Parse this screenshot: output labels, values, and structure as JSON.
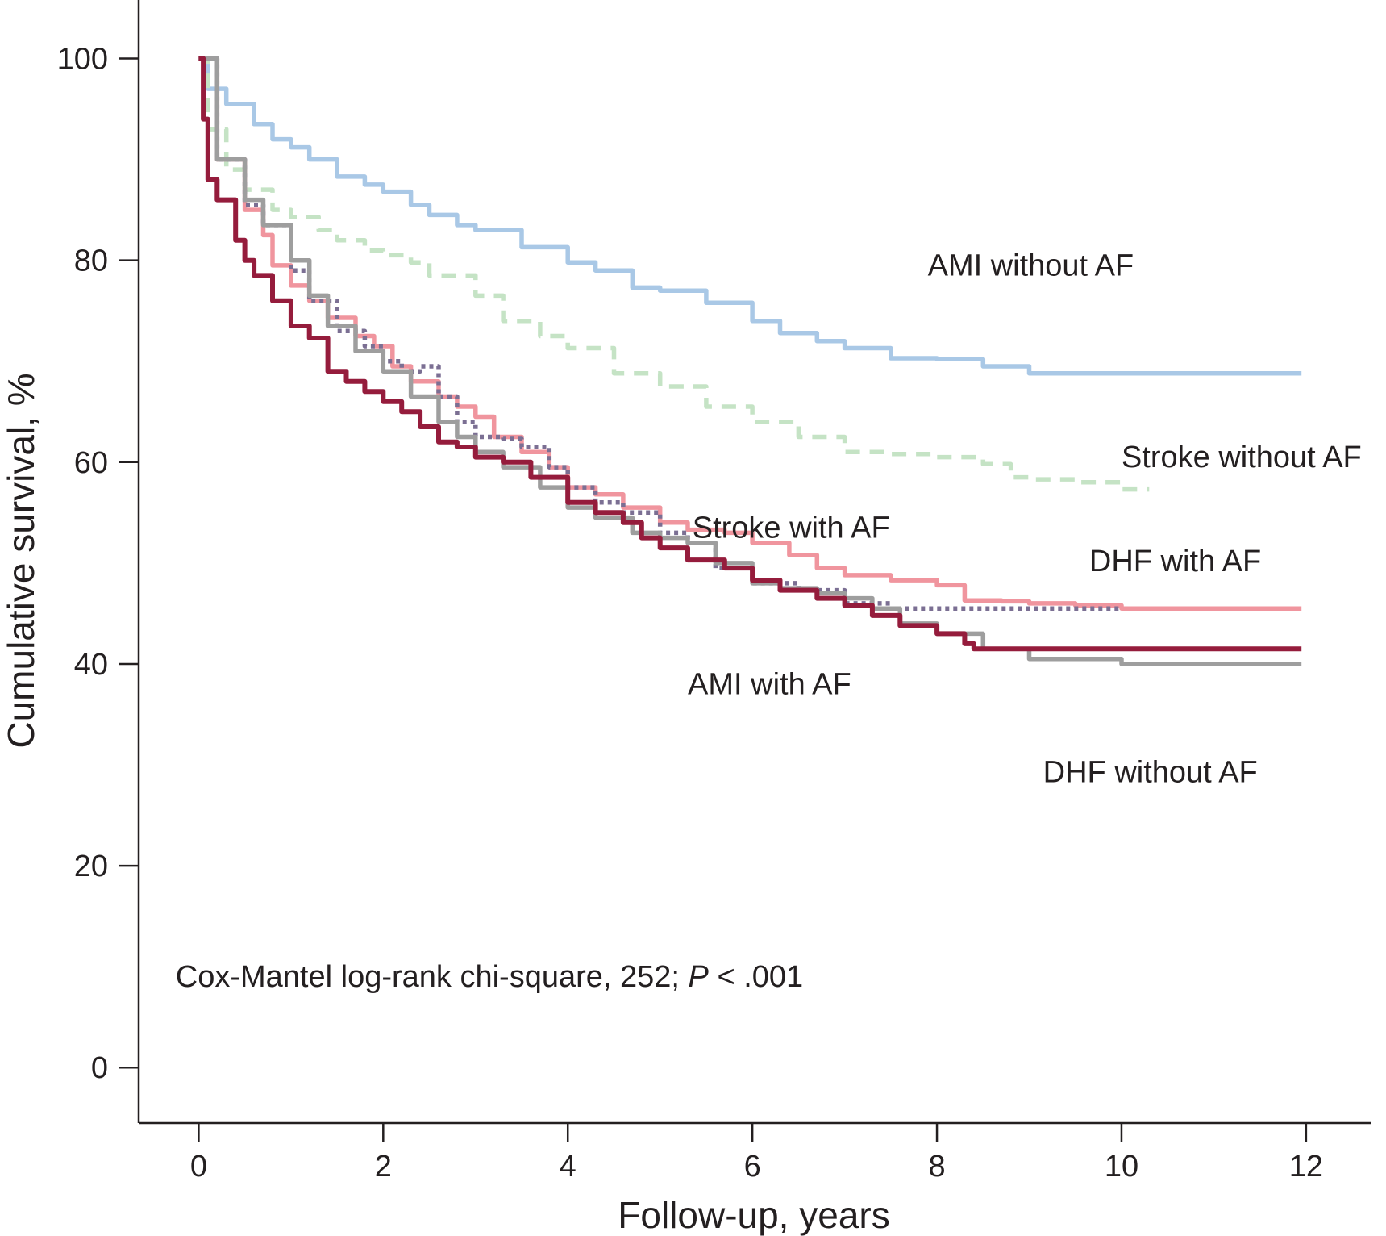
{
  "chart_data": {
    "type": "line",
    "xlabel": "Follow-up, years",
    "ylabel": "Cumulative survival, %",
    "xlim": [
      -0.65,
      12.7
    ],
    "ylim": [
      -5.5,
      105.8
    ],
    "xticks": [
      0,
      2,
      4,
      6,
      8,
      10,
      12
    ],
    "yticks": [
      0,
      20,
      40,
      60,
      80,
      100
    ],
    "grid": false,
    "legend": "none",
    "annotation": {
      "text_main": "Cox-Mantel log-rank chi-square, 252; ",
      "text_italic": "P",
      "text_tail": " < .001",
      "x": -0.25,
      "y": 8
    },
    "series": [
      {
        "name": "AMI without AF",
        "color": "#a9c8e6",
        "dash": "solid",
        "label_pos": [
          7.9,
          78.5
        ],
        "points": [
          [
            0,
            100
          ],
          [
            0.1,
            97
          ],
          [
            0.3,
            95.5
          ],
          [
            0.6,
            93.5
          ],
          [
            0.8,
            92
          ],
          [
            1.0,
            91.2
          ],
          [
            1.2,
            90
          ],
          [
            1.5,
            88.3
          ],
          [
            1.8,
            87.5
          ],
          [
            2.0,
            86.8
          ],
          [
            2.3,
            85.5
          ],
          [
            2.5,
            84.5
          ],
          [
            2.8,
            83.5
          ],
          [
            3.0,
            83
          ],
          [
            3.5,
            81.3
          ],
          [
            4.0,
            79.8
          ],
          [
            4.3,
            79
          ],
          [
            4.7,
            77.3
          ],
          [
            5.0,
            77
          ],
          [
            5.5,
            75.8
          ],
          [
            6.0,
            74
          ],
          [
            6.3,
            72.8
          ],
          [
            6.7,
            72
          ],
          [
            7.0,
            71.3
          ],
          [
            7.5,
            70.3
          ],
          [
            8.0,
            70.2
          ],
          [
            8.5,
            69.5
          ],
          [
            9.0,
            68.8
          ],
          [
            9.5,
            68.8
          ],
          [
            10.0,
            68.8
          ],
          [
            11.0,
            68.8
          ],
          [
            11.95,
            68.8
          ]
        ]
      },
      {
        "name": "Stroke without AF",
        "color": "#c5e3c5",
        "dash": "dashed",
        "label_pos": [
          10.0,
          59.5
        ],
        "points": [
          [
            0,
            100
          ],
          [
            0.1,
            93
          ],
          [
            0.3,
            89
          ],
          [
            0.5,
            87
          ],
          [
            0.8,
            85
          ],
          [
            1.0,
            84.3
          ],
          [
            1.3,
            83
          ],
          [
            1.5,
            82
          ],
          [
            1.8,
            81
          ],
          [
            2.0,
            80.5
          ],
          [
            2.3,
            79.8
          ],
          [
            2.5,
            78.5
          ],
          [
            3.0,
            76.5
          ],
          [
            3.3,
            74
          ],
          [
            3.7,
            72.5
          ],
          [
            4.0,
            71.3
          ],
          [
            4.5,
            68.8
          ],
          [
            5.0,
            67.5
          ],
          [
            5.5,
            65.5
          ],
          [
            6.0,
            64
          ],
          [
            6.5,
            62.5
          ],
          [
            7.0,
            61
          ],
          [
            7.5,
            60.8
          ],
          [
            8.0,
            60.5
          ],
          [
            8.5,
            59.8
          ],
          [
            8.8,
            58.5
          ],
          [
            9.0,
            58.3
          ],
          [
            9.5,
            58
          ],
          [
            10.0,
            57.3
          ],
          [
            10.3,
            57.3
          ]
        ]
      },
      {
        "name": "DHF with AF",
        "color": "#f0959e",
        "dash": "solid",
        "label_pos": [
          9.65,
          49.2
        ],
        "points": [
          [
            0,
            100
          ],
          [
            0.2,
            90
          ],
          [
            0.5,
            85
          ],
          [
            0.7,
            82.5
          ],
          [
            0.8,
            79.5
          ],
          [
            1.0,
            77.5
          ],
          [
            1.2,
            76
          ],
          [
            1.4,
            74.3
          ],
          [
            1.7,
            72.5
          ],
          [
            1.9,
            71.5
          ],
          [
            2.1,
            69.5
          ],
          [
            2.3,
            68
          ],
          [
            2.6,
            66.5
          ],
          [
            2.8,
            65.5
          ],
          [
            3.0,
            64.5
          ],
          [
            3.2,
            62.5
          ],
          [
            3.5,
            61
          ],
          [
            3.8,
            59.5
          ],
          [
            4.0,
            57.5
          ],
          [
            4.3,
            56.8
          ],
          [
            4.6,
            55.5
          ],
          [
            5.0,
            54
          ],
          [
            5.3,
            53.3
          ],
          [
            5.7,
            53
          ],
          [
            6.0,
            52
          ],
          [
            6.4,
            50.8
          ],
          [
            6.7,
            49.5
          ],
          [
            7.0,
            48.8
          ],
          [
            7.5,
            48.3
          ],
          [
            8.0,
            47.8
          ],
          [
            8.3,
            46.3
          ],
          [
            8.7,
            46.2
          ],
          [
            9.0,
            46
          ],
          [
            9.5,
            45.8
          ],
          [
            10.0,
            45.5
          ],
          [
            11.0,
            45.5
          ],
          [
            11.95,
            45.5
          ]
        ]
      },
      {
        "name": "AMI with AF",
        "color": "#7b6f93",
        "dash": "dotted",
        "label_pos": [
          5.3,
          37
        ],
        "points": [
          [
            0,
            100
          ],
          [
            0.2,
            90
          ],
          [
            0.5,
            85.5
          ],
          [
            0.7,
            83.5
          ],
          [
            1.0,
            79
          ],
          [
            1.2,
            76
          ],
          [
            1.5,
            73
          ],
          [
            1.8,
            71.5
          ],
          [
            2.0,
            70
          ],
          [
            2.2,
            69
          ],
          [
            2.4,
            69.5
          ],
          [
            2.6,
            66.5
          ],
          [
            2.8,
            64
          ],
          [
            3.0,
            62.5
          ],
          [
            3.3,
            62.3
          ],
          [
            3.5,
            61.5
          ],
          [
            3.8,
            59.5
          ],
          [
            4.0,
            57.5
          ],
          [
            4.3,
            56
          ],
          [
            4.6,
            55
          ],
          [
            5.0,
            53
          ],
          [
            5.3,
            52
          ],
          [
            5.6,
            49.5
          ],
          [
            6.0,
            48
          ],
          [
            6.5,
            47.3
          ],
          [
            7.0,
            46
          ],
          [
            7.5,
            45.5
          ],
          [
            8.0,
            45.5
          ],
          [
            8.5,
            45.5
          ],
          [
            9.0,
            45.5
          ],
          [
            10.0,
            45.5
          ]
        ]
      },
      {
        "name": "DHF without AF",
        "color": "#9e9e9e",
        "dash": "solid",
        "label_pos": [
          9.15,
          28.3
        ],
        "points": [
          [
            0,
            100
          ],
          [
            0.2,
            90
          ],
          [
            0.5,
            86
          ],
          [
            0.7,
            83.5
          ],
          [
            1.0,
            80
          ],
          [
            1.2,
            76.5
          ],
          [
            1.4,
            73.5
          ],
          [
            1.7,
            71
          ],
          [
            2.0,
            69
          ],
          [
            2.3,
            66.5
          ],
          [
            2.6,
            64
          ],
          [
            2.8,
            62.5
          ],
          [
            3.0,
            61
          ],
          [
            3.3,
            59.5
          ],
          [
            3.7,
            57.5
          ],
          [
            4.0,
            55.5
          ],
          [
            4.3,
            54.5
          ],
          [
            4.7,
            53
          ],
          [
            5.0,
            52.5
          ],
          [
            5.3,
            52
          ],
          [
            5.6,
            50
          ],
          [
            6.0,
            48
          ],
          [
            6.3,
            47.5
          ],
          [
            6.7,
            47
          ],
          [
            7.0,
            46.5
          ],
          [
            7.3,
            45.5
          ],
          [
            7.6,
            44
          ],
          [
            8.0,
            43
          ],
          [
            8.5,
            41.5
          ],
          [
            9.0,
            40.5
          ],
          [
            9.5,
            40.5
          ],
          [
            10.0,
            40
          ],
          [
            11.0,
            40
          ],
          [
            11.95,
            40
          ]
        ]
      },
      {
        "name": "Stroke with AF",
        "color": "#951c3c",
        "dash": "solid",
        "label_pos": [
          5.35,
          52.5
        ],
        "points": [
          [
            0,
            100
          ],
          [
            0.05,
            94
          ],
          [
            0.1,
            88
          ],
          [
            0.2,
            86
          ],
          [
            0.4,
            82
          ],
          [
            0.5,
            80
          ],
          [
            0.6,
            78.5
          ],
          [
            0.8,
            76
          ],
          [
            1.0,
            73.5
          ],
          [
            1.2,
            72.3
          ],
          [
            1.4,
            69
          ],
          [
            1.6,
            68
          ],
          [
            1.8,
            67
          ],
          [
            2.0,
            66
          ],
          [
            2.2,
            65
          ],
          [
            2.4,
            63.5
          ],
          [
            2.6,
            62
          ],
          [
            2.8,
            61.5
          ],
          [
            3.0,
            60.5
          ],
          [
            3.3,
            60
          ],
          [
            3.6,
            58.5
          ],
          [
            4.0,
            56
          ],
          [
            4.3,
            55
          ],
          [
            4.6,
            54
          ],
          [
            4.8,
            52.5
          ],
          [
            5.0,
            51.5
          ],
          [
            5.3,
            50.3
          ],
          [
            5.7,
            49.5
          ],
          [
            6.0,
            48.3
          ],
          [
            6.3,
            47.3
          ],
          [
            6.7,
            46.5
          ],
          [
            7.0,
            45.8
          ],
          [
            7.3,
            44.8
          ],
          [
            7.6,
            43.8
          ],
          [
            8.0,
            43
          ],
          [
            8.3,
            42
          ],
          [
            8.4,
            41.5
          ],
          [
            9.0,
            41.5
          ],
          [
            10.0,
            41.5
          ],
          [
            11.0,
            41.5
          ],
          [
            11.95,
            41.5
          ]
        ]
      }
    ]
  }
}
